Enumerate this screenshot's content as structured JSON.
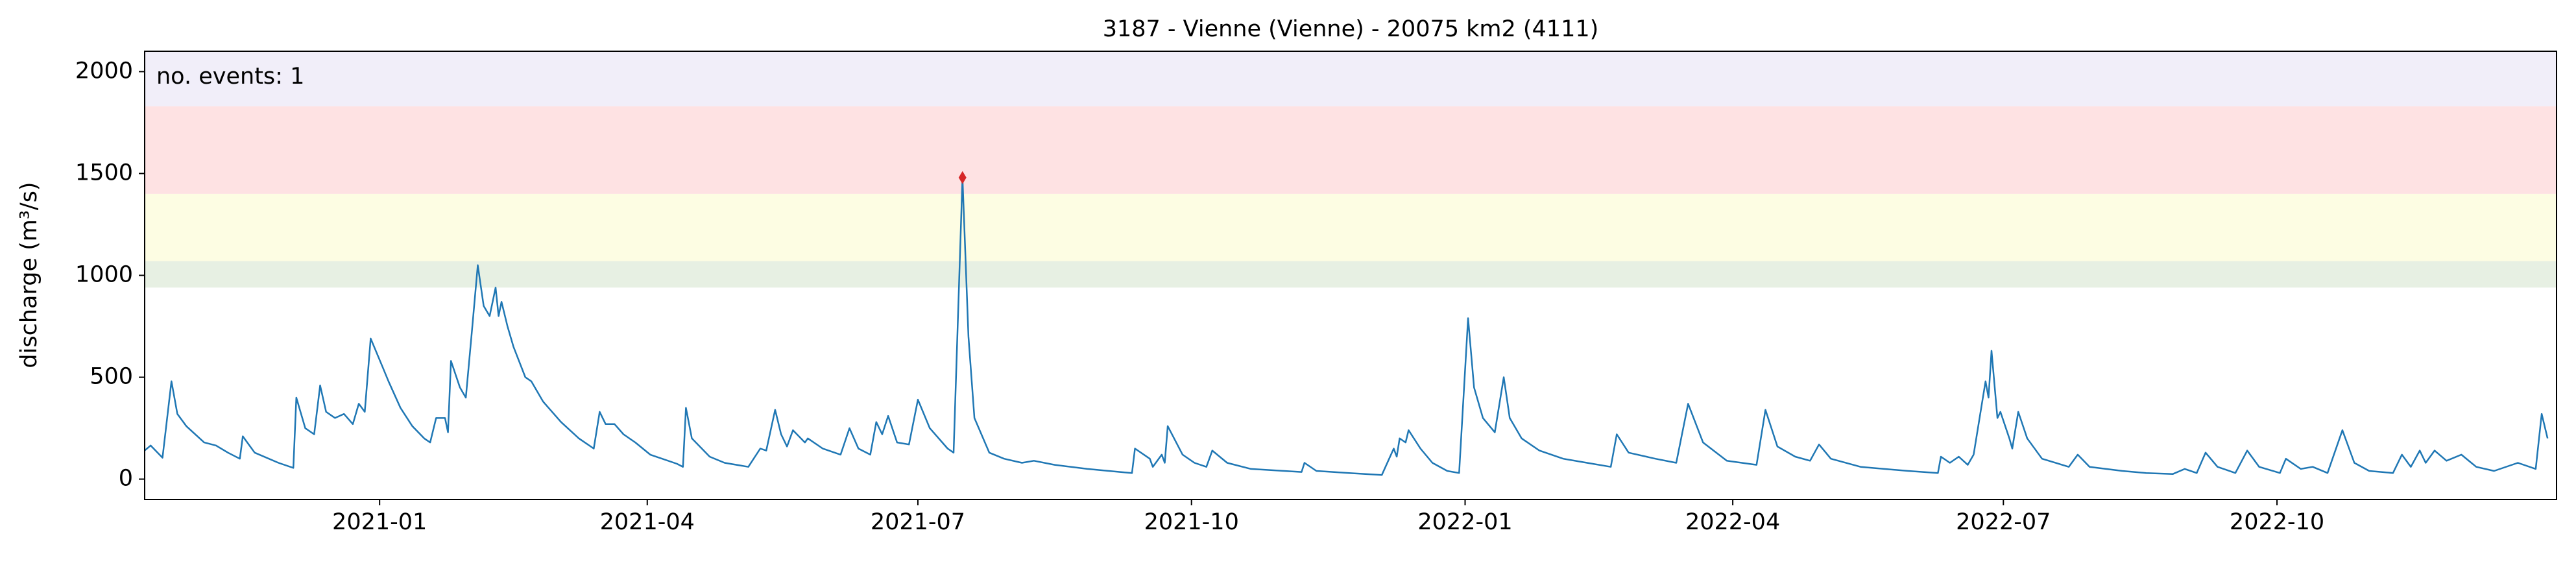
{
  "chart_data": {
    "type": "line",
    "title": "3187 - Vienne (Vienne) - 20075 km2 (4111)",
    "ylabel": "discharge (m³/s)",
    "annotation": "no. events: 1",
    "annotation_color": "#e8141c",
    "xlim": [
      "2020-10-14",
      "2023-01-03"
    ],
    "ylim": [
      -100,
      2100
    ],
    "yticks": [
      0,
      500,
      1000,
      1500,
      2000
    ],
    "xticks": [
      {
        "value": "2021-01-01",
        "label": "2021-01"
      },
      {
        "value": "2021-04-01",
        "label": "2021-04"
      },
      {
        "value": "2021-07-01",
        "label": "2021-07"
      },
      {
        "value": "2021-10-01",
        "label": "2021-10"
      },
      {
        "value": "2022-01-01",
        "label": "2022-01"
      },
      {
        "value": "2022-04-01",
        "label": "2022-04"
      },
      {
        "value": "2022-07-01",
        "label": "2022-07"
      },
      {
        "value": "2022-10-01",
        "label": "2022-10"
      }
    ],
    "bands": [
      {
        "from": 940,
        "to": 1070,
        "color": "#e7f0e3"
      },
      {
        "from": 1070,
        "to": 1400,
        "color": "#fdfde3"
      },
      {
        "from": 1400,
        "to": 1830,
        "color": "#fee2e3"
      },
      {
        "from": 1830,
        "to": 2100,
        "color": "#f1eef9"
      }
    ],
    "events": {
      "x": [
        "2021-07-16"
      ],
      "values": [
        1480
      ],
      "color": "#d62728"
    },
    "series": [
      {
        "color": "#1f77b4",
        "x": [
          "2020-10-14",
          "2020-10-16",
          "2020-10-20",
          "2020-10-23",
          "2020-10-25",
          "2020-10-28",
          "2020-11-03",
          "2020-11-07",
          "2020-11-11",
          "2020-11-15",
          "2020-11-16",
          "2020-11-20",
          "2020-11-28",
          "2020-12-03",
          "2020-12-04",
          "2020-12-07",
          "2020-12-10",
          "2020-12-12",
          "2020-12-14",
          "2020-12-17",
          "2020-12-20",
          "2020-12-23",
          "2020-12-25",
          "2020-12-27",
          "2020-12-29",
          "2021-01-02",
          "2021-01-04",
          "2021-01-08",
          "2021-01-12",
          "2021-01-16",
          "2021-01-18",
          "2021-01-20",
          "2021-01-23",
          "2021-01-24",
          "2021-01-25",
          "2021-01-28",
          "2021-01-30",
          "2021-02-01",
          "2021-02-03",
          "2021-02-05",
          "2021-02-07",
          "2021-02-09",
          "2021-02-10",
          "2021-02-11",
          "2021-02-13",
          "2021-02-15",
          "2021-02-19",
          "2021-02-21",
          "2021-02-25",
          "2021-03-03",
          "2021-03-09",
          "2021-03-14",
          "2021-03-16",
          "2021-03-18",
          "2021-03-21",
          "2021-03-24",
          "2021-03-28",
          "2021-04-02",
          "2021-04-11",
          "2021-04-13",
          "2021-04-14",
          "2021-04-16",
          "2021-04-22",
          "2021-04-27",
          "2021-05-05",
          "2021-05-09",
          "2021-05-11",
          "2021-05-14",
          "2021-05-16",
          "2021-05-18",
          "2021-05-20",
          "2021-05-24",
          "2021-05-25",
          "2021-05-30",
          "2021-06-05",
          "2021-06-08",
          "2021-06-11",
          "2021-06-15",
          "2021-06-17",
          "2021-06-19",
          "2021-06-21",
          "2021-06-24",
          "2021-06-28",
          "2021-07-01",
          "2021-07-05",
          "2021-07-11",
          "2021-07-13",
          "2021-07-16",
          "2021-07-18",
          "2021-07-20",
          "2021-07-25",
          "2021-07-30",
          "2021-08-05",
          "2021-08-09",
          "2021-08-16",
          "2021-08-27",
          "2021-09-07",
          "2021-09-11",
          "2021-09-12",
          "2021-09-17",
          "2021-09-18",
          "2021-09-21",
          "2021-09-22",
          "2021-09-23",
          "2021-09-28",
          "2021-10-02",
          "2021-10-06",
          "2021-10-08",
          "2021-10-13",
          "2021-10-21",
          "2021-11-07",
          "2021-11-08",
          "2021-11-12",
          "2021-11-23",
          "2021-12-04",
          "2021-12-08",
          "2021-12-09",
          "2021-12-10",
          "2021-12-12",
          "2021-12-13",
          "2021-12-17",
          "2021-12-21",
          "2021-12-26",
          "2021-12-30",
          "2022-01-02",
          "2022-01-04",
          "2022-01-07",
          "2022-01-11",
          "2022-01-14",
          "2022-01-16",
          "2022-01-20",
          "2022-01-26",
          "2022-02-03",
          "2022-02-11",
          "2022-02-19",
          "2022-02-21",
          "2022-02-25",
          "2022-03-06",
          "2022-03-13",
          "2022-03-17",
          "2022-03-22",
          "2022-03-30",
          "2022-04-09",
          "2022-04-12",
          "2022-04-16",
          "2022-04-22",
          "2022-04-27",
          "2022-04-30",
          "2022-05-04",
          "2022-05-14",
          "2022-05-30",
          "2022-06-09",
          "2022-06-10",
          "2022-06-13",
          "2022-06-16",
          "2022-06-19",
          "2022-06-21",
          "2022-06-25",
          "2022-06-26",
          "2022-06-27",
          "2022-06-29",
          "2022-06-30",
          "2022-07-03",
          "2022-07-04",
          "2022-07-06",
          "2022-07-09",
          "2022-07-14",
          "2022-07-23",
          "2022-07-26",
          "2022-07-30",
          "2022-08-10",
          "2022-08-18",
          "2022-08-27",
          "2022-08-31",
          "2022-09-04",
          "2022-09-07",
          "2022-09-11",
          "2022-09-17",
          "2022-09-21",
          "2022-09-25",
          "2022-10-02",
          "2022-10-04",
          "2022-10-09",
          "2022-10-13",
          "2022-10-18",
          "2022-10-23",
          "2022-10-27",
          "2022-11-01",
          "2022-11-09",
          "2022-11-12",
          "2022-11-15",
          "2022-11-18",
          "2022-11-20",
          "2022-11-23",
          "2022-11-27",
          "2022-12-02",
          "2022-12-07",
          "2022-12-13",
          "2022-12-21",
          "2022-12-27",
          "2022-12-29",
          "2022-12-31"
        ],
        "values": [
          140,
          165,
          105,
          480,
          320,
          260,
          180,
          165,
          130,
          100,
          210,
          130,
          80,
          55,
          400,
          250,
          220,
          460,
          330,
          300,
          320,
          270,
          370,
          330,
          690,
          550,
          480,
          350,
          260,
          200,
          180,
          300,
          300,
          230,
          580,
          450,
          400,
          720,
          1050,
          850,
          800,
          940,
          800,
          870,
          750,
          650,
          500,
          480,
          380,
          280,
          200,
          150,
          330,
          270,
          270,
          220,
          180,
          120,
          75,
          60,
          350,
          200,
          110,
          80,
          60,
          150,
          140,
          340,
          220,
          160,
          240,
          180,
          200,
          150,
          120,
          250,
          150,
          120,
          280,
          220,
          310,
          180,
          170,
          390,
          250,
          150,
          130,
          1480,
          700,
          300,
          130,
          100,
          80,
          90,
          70,
          50,
          35,
          30,
          150,
          100,
          60,
          120,
          80,
          260,
          120,
          80,
          60,
          140,
          80,
          50,
          35,
          80,
          40,
          30,
          20,
          150,
          110,
          200,
          180,
          240,
          150,
          80,
          40,
          30,
          790,
          450,
          300,
          230,
          500,
          300,
          200,
          140,
          100,
          80,
          60,
          220,
          130,
          100,
          80,
          370,
          180,
          90,
          70,
          340,
          160,
          110,
          90,
          170,
          100,
          60,
          40,
          30,
          110,
          80,
          110,
          70,
          120,
          480,
          400,
          630,
          300,
          330,
          200,
          150,
          330,
          200,
          100,
          60,
          120,
          60,
          40,
          30,
          25,
          50,
          30,
          130,
          60,
          30,
          140,
          60,
          30,
          100,
          50,
          60,
          30,
          240,
          80,
          40,
          30,
          120,
          60,
          140,
          80,
          140,
          90,
          120,
          60,
          40,
          80,
          50,
          320,
          200
        ]
      }
    ]
  }
}
